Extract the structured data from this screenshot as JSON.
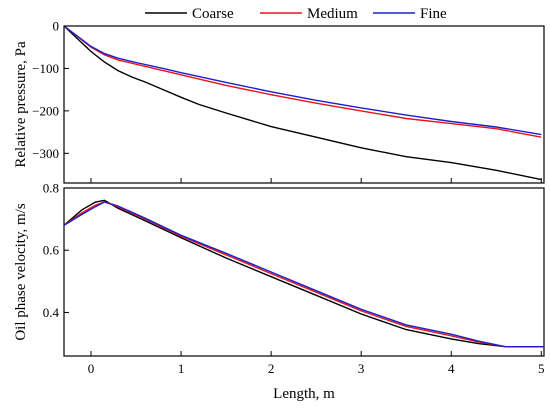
{
  "chart_data": [
    {
      "type": "line",
      "ylabel": "Relative pressure, Pa",
      "ylim": [
        -370,
        0
      ],
      "xlim": [
        -0.3,
        5.03
      ],
      "yticks": [
        0,
        -100,
        -200,
        -300
      ],
      "ytick_labels": [
        "0",
        "−100",
        "−200",
        "−300"
      ],
      "grid": false,
      "series": [
        {
          "name": "Coarse",
          "color": "#000000",
          "x": [
            -0.3,
            -0.15,
            0.0,
            0.15,
            0.3,
            0.45,
            0.6,
            0.8,
            1.0,
            1.2,
            1.5,
            2.0,
            2.5,
            3.0,
            3.5,
            4.0,
            4.5,
            5.0
          ],
          "y": [
            0,
            -30,
            -60,
            -85,
            -105,
            -120,
            -132,
            -150,
            -168,
            -185,
            -205,
            -237,
            -262,
            -287,
            -308,
            -322,
            -340,
            -362
          ]
        },
        {
          "name": "Medium",
          "color": "#e8141c",
          "x": [
            -0.3,
            -0.15,
            0.0,
            0.15,
            0.3,
            0.5,
            0.8,
            1.0,
            1.5,
            2.0,
            2.5,
            3.0,
            3.5,
            4.0,
            4.5,
            5.0
          ],
          "y": [
            0,
            -25,
            -50,
            -68,
            -80,
            -90,
            -105,
            -115,
            -140,
            -162,
            -182,
            -200,
            -218,
            -230,
            -242,
            -262
          ]
        },
        {
          "name": "Fine",
          "color": "#1f1fcc",
          "x": [
            -0.3,
            -0.15,
            0.0,
            0.15,
            0.3,
            0.5,
            0.8,
            1.0,
            1.5,
            2.0,
            2.5,
            3.0,
            3.5,
            4.0,
            4.5,
            5.0
          ],
          "y": [
            0,
            -24,
            -48,
            -65,
            -76,
            -86,
            -100,
            -110,
            -133,
            -155,
            -175,
            -193,
            -210,
            -225,
            -238,
            -256
          ]
        }
      ]
    },
    {
      "type": "line",
      "xlabel": "Length, m",
      "ylabel": "Oil phase velocity, m/s",
      "ylim": [
        0.26,
        0.8
      ],
      "xlim": [
        -0.3,
        5.03
      ],
      "xticks": [
        0,
        1,
        2,
        3,
        4,
        5
      ],
      "xtick_labels": [
        "0",
        "1",
        "2",
        "3",
        "4",
        "5"
      ],
      "yticks": [
        0.4,
        0.6,
        0.8
      ],
      "ytick_labels": [
        "0.4",
        "0.6",
        "0.8"
      ],
      "grid": false,
      "series": [
        {
          "name": "Coarse",
          "color": "#000000",
          "x": [
            -0.3,
            -0.1,
            0.05,
            0.15,
            0.3,
            0.6,
            1.0,
            1.5,
            2.0,
            2.5,
            3.0,
            3.5,
            4.0,
            4.3,
            4.6,
            5.03
          ],
          "y": [
            0.68,
            0.73,
            0.755,
            0.76,
            0.735,
            0.695,
            0.64,
            0.575,
            0.515,
            0.455,
            0.395,
            0.345,
            0.315,
            0.3,
            0.29,
            0.29
          ]
        },
        {
          "name": "Medium",
          "color": "#e8141c",
          "x": [
            -0.3,
            -0.1,
            0.05,
            0.15,
            0.3,
            0.6,
            1.0,
            1.5,
            2.0,
            2.5,
            3.0,
            3.5,
            4.0,
            4.3,
            4.6,
            5.03
          ],
          "y": [
            0.68,
            0.72,
            0.745,
            0.755,
            0.74,
            0.7,
            0.645,
            0.585,
            0.525,
            0.465,
            0.405,
            0.355,
            0.325,
            0.305,
            0.29,
            0.29
          ]
        },
        {
          "name": "Fine",
          "color": "#1f1fcc",
          "x": [
            -0.3,
            -0.1,
            0.05,
            0.15,
            0.3,
            0.6,
            1.0,
            1.5,
            2.0,
            2.5,
            3.0,
            3.5,
            4.0,
            4.3,
            4.6,
            5.03
          ],
          "y": [
            0.68,
            0.715,
            0.74,
            0.755,
            0.742,
            0.703,
            0.648,
            0.59,
            0.53,
            0.47,
            0.41,
            0.36,
            0.33,
            0.308,
            0.29,
            0.29
          ]
        }
      ]
    }
  ],
  "legend": {
    "placement": "top",
    "entries": [
      "Coarse",
      "Medium",
      "Fine"
    ]
  }
}
